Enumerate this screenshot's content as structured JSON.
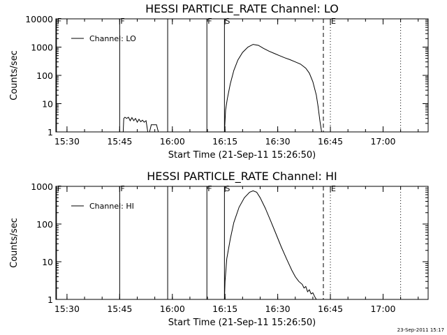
{
  "footer": {
    "stamp": "23-Sep-2011 15:17"
  },
  "colors": {
    "background": "#ffffff",
    "foreground": "#000000"
  },
  "chart_data": [
    {
      "type": "line",
      "title": "HESSI PARTICLE_RATE Channel: LO",
      "xlabel": "Start Time (21-Sep-11 15:26:50)",
      "ylabel": "Counts/sec",
      "yscale": "log",
      "ylim": [
        1,
        10000
      ],
      "xlim": [
        "15:26:50",
        "17:12:50"
      ],
      "x_ticks": [
        "15:30",
        "15:45",
        "16:00",
        "16:15",
        "16:30",
        "16:45",
        "17:00"
      ],
      "y_ticks": [
        "1",
        "10",
        "100",
        "1000",
        "10000"
      ],
      "legend": {
        "entries": [
          "Channel: LO"
        ],
        "position": "top-left"
      },
      "markers": [
        {
          "label": "F",
          "time": "15:27:00",
          "style": "solid"
        },
        {
          "label": "F",
          "time": "15:45:00",
          "style": "solid"
        },
        {
          "label": "",
          "time": "15:58:40",
          "style": "solid"
        },
        {
          "label": "F",
          "time": "16:09:50",
          "style": "solid"
        },
        {
          "label": "S",
          "time": "16:14:50",
          "style": "solid"
        },
        {
          "label": "",
          "time": "16:43:00",
          "style": "dashed"
        },
        {
          "label": "E",
          "time": "16:45:00",
          "style": "dotted"
        },
        {
          "label": "",
          "time": "17:05:00",
          "style": "dotted"
        }
      ],
      "series": [
        {
          "name": "Channel: LO",
          "segments": [
            {
              "x": [
                "15:46:00",
                "15:46:10",
                "15:46:30",
                "15:47:00",
                "15:47:30",
                "15:48:00",
                "15:48:30",
                "15:49:00",
                "15:49:30",
                "15:50:00",
                "15:50:30",
                "15:51:00",
                "15:51:30",
                "15:52:00",
                "15:52:30",
                "15:53:00",
                "15:53:30",
                "15:54:00",
                "15:54:30",
                "15:55:00",
                "15:55:30",
                "15:56:00"
              ],
              "y": [
                1,
                3.0,
                3.3,
                3.0,
                3.3,
                2.5,
                3.2,
                2.5,
                3.0,
                2.2,
                2.8,
                2.3,
                2.6,
                2.2,
                2.5,
                1,
                1,
                1.8,
                1.8,
                1.8,
                1.8,
                1
              ]
            },
            {
              "x": [
                "16:14:50",
                "16:15:10",
                "16:15:40",
                "16:16:30",
                "16:17:30",
                "16:18:40",
                "16:20:00",
                "16:21:30",
                "16:23:00",
                "16:24:30",
                "16:26:00",
                "16:27:30",
                "16:29:00",
                "16:30:30",
                "16:32:00",
                "16:33:30",
                "16:35:00",
                "16:36:30",
                "16:38:00",
                "16:39:00",
                "16:40:00",
                "16:41:00",
                "16:41:30",
                "16:42:00",
                "16:42:30"
              ],
              "y": [
                1,
                6,
                15,
                50,
                150,
                350,
                650,
                1000,
                1250,
                1150,
                900,
                720,
                600,
                500,
                420,
                360,
                300,
                250,
                180,
                120,
                60,
                20,
                8,
                2.5,
                1
              ]
            }
          ]
        }
      ]
    },
    {
      "type": "line",
      "title": "HESSI PARTICLE_RATE Channel: HI",
      "xlabel": "Start Time (21-Sep-11 15:26:50)",
      "ylabel": "Counts/sec",
      "yscale": "log",
      "ylim": [
        1,
        1000
      ],
      "xlim": [
        "15:26:50",
        "17:12:50"
      ],
      "x_ticks": [
        "15:30",
        "15:45",
        "16:00",
        "16:15",
        "16:30",
        "16:45",
        "17:00"
      ],
      "y_ticks": [
        "1",
        "10",
        "100",
        "1000"
      ],
      "legend": {
        "entries": [
          "Channel: HI"
        ],
        "position": "top-left"
      },
      "markers": [
        {
          "label": "F",
          "time": "15:27:00",
          "style": "solid"
        },
        {
          "label": "F",
          "time": "15:45:00",
          "style": "solid"
        },
        {
          "label": "",
          "time": "15:58:40",
          "style": "solid"
        },
        {
          "label": "F",
          "time": "16:09:50",
          "style": "solid"
        },
        {
          "label": "S",
          "time": "16:14:50",
          "style": "solid"
        },
        {
          "label": "",
          "time": "16:43:00",
          "style": "dashed"
        },
        {
          "label": "E",
          "time": "16:45:00",
          "style": "dotted"
        },
        {
          "label": "",
          "time": "17:05:00",
          "style": "dotted"
        }
      ],
      "series": [
        {
          "name": "Channel: HI",
          "segments": [
            {
              "x": [
                "16:14:50",
                "16:15:00",
                "16:15:30",
                "16:16:30",
                "16:17:30",
                "16:19:00",
                "16:20:30",
                "16:22:00",
                "16:23:00",
                "16:24:00",
                "16:25:00",
                "16:26:30",
                "16:28:00",
                "16:29:30",
                "16:31:00",
                "16:32:30",
                "16:34:00",
                "16:35:00",
                "16:36:00",
                "16:37:00",
                "16:37:30",
                "16:38:00",
                "16:38:30",
                "16:39:00",
                "16:39:30",
                "16:40:00",
                "16:40:30",
                "16:41:00"
              ],
              "y": [
                1,
                3,
                12,
                40,
                110,
                280,
                500,
                700,
                760,
                700,
                500,
                260,
                120,
                55,
                25,
                12,
                6,
                4,
                3,
                2.5,
                2,
                2.2,
                1.6,
                1.8,
                1.4,
                1.5,
                1.2,
                1
              ]
            }
          ]
        }
      ]
    }
  ]
}
